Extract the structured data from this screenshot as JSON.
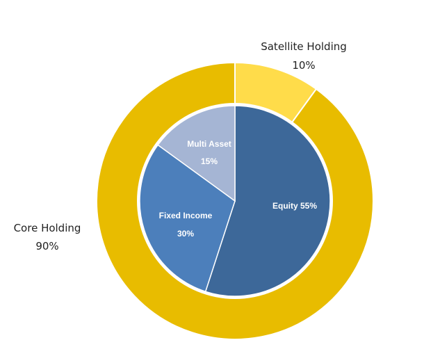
{
  "chart_data": {
    "type": "pie",
    "title": "",
    "rings": [
      {
        "name": "outer",
        "slices": [
          {
            "label": "Satellite Holding",
            "value_label": "10%",
            "value": 10,
            "color": "#FFDC4A"
          },
          {
            "label": "Core Holding",
            "value_label": "90%",
            "value": 90,
            "color": "#E8BC00"
          }
        ]
      },
      {
        "name": "inner",
        "slices": [
          {
            "label": "Equity 55%",
            "value_label": "",
            "value": 55,
            "color": "#3D6899"
          },
          {
            "label": "Fixed Income",
            "value_label": "30%",
            "value": 30,
            "color": "#4C7FBB"
          },
          {
            "label": "Multi Asset",
            "value_label": "15%",
            "value": 15,
            "color": "#A5B5D4"
          }
        ]
      }
    ]
  }
}
